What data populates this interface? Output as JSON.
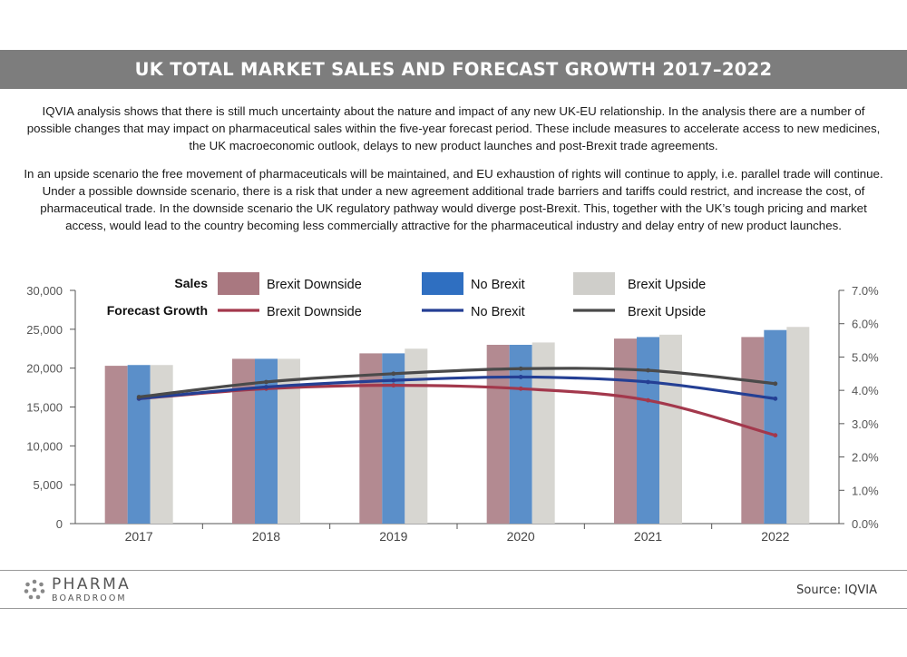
{
  "header": {
    "title": "UK TOTAL MARKET SALES AND FORECAST GROWTH 2017–2022"
  },
  "body": {
    "paragraph_1": "IQVIA analysis shows that there is still much uncertainty about the nature and impact of any new UK-EU relationship. In the analysis there are a number of possible changes that may impact on pharmaceutical sales within the five-year forecast period. These include measures to accelerate access to new medicines, the UK macroeconomic outlook, delays to new product launches and post-Brexit trade agreements.",
    "paragraph_2": "In an upside scenario the free movement of pharmaceuticals will be maintained, and EU exhaustion of rights will continue to apply, i.e. parallel trade will continue. Under a possible downside scenario, there is a risk that under a new agreement additional trade barriers and tariffs could restrict, and increase the cost, of pharmaceutical trade. In the downside scenario the UK regulatory pathway would diverge post-Brexit. This, together with the UK’s tough pricing and market access, would lead to the country becoming less commercially attractive for the pharmaceutical industry and delay entry of new product launches."
  },
  "chart_data": {
    "type": "bar",
    "combo": "bar+line",
    "categories": [
      "2017",
      "2018",
      "2019",
      "2020",
      "2021",
      "2022"
    ],
    "title": "",
    "xlabel": "",
    "ylabel": "",
    "y_left": {
      "lim": [
        0,
        30000
      ],
      "ticks": [
        0,
        5000,
        10000,
        15000,
        20000,
        25000,
        30000
      ],
      "tick_labels": [
        "0",
        "5,000",
        "10,000",
        "15,000",
        "20,000",
        "25,000",
        "30,000"
      ]
    },
    "y_right": {
      "lim": [
        0,
        7
      ],
      "ticks": [
        0,
        1,
        2,
        3,
        4,
        5,
        6,
        7
      ],
      "tick_labels": [
        "0.0%",
        "1.0%",
        "2.0%",
        "3.0%",
        "4.0%",
        "5.0%",
        "6.0%",
        "7.0%"
      ]
    },
    "grid": false,
    "legend": {
      "placement": "top",
      "sales_label": "Sales",
      "growth_label": "Forecast Growth"
    },
    "series": [
      {
        "name": "Brexit Downside",
        "kind": "bar",
        "axis": "left",
        "color": "#b38a91",
        "values": [
          20300,
          21200,
          21900,
          23000,
          23800,
          24000
        ]
      },
      {
        "name": "No Brexit",
        "kind": "bar",
        "axis": "left",
        "color": "#5b8fc9",
        "values": [
          20400,
          21200,
          21900,
          23000,
          24000,
          24900
        ]
      },
      {
        "name": "Brexit Upside",
        "kind": "bar",
        "axis": "left",
        "color": "#d7d6d1",
        "values": [
          20400,
          21200,
          22500,
          23300,
          24300,
          25300
        ]
      },
      {
        "name": "Brexit Downside",
        "kind": "line",
        "axis": "right",
        "color": "#a3384c",
        "values": [
          3.75,
          4.05,
          4.15,
          4.05,
          3.7,
          2.65
        ]
      },
      {
        "name": "No Brexit",
        "kind": "line",
        "axis": "right",
        "color": "#243f94",
        "values": [
          3.75,
          4.1,
          4.3,
          4.4,
          4.25,
          3.75
        ]
      },
      {
        "name": "Brexit Upside",
        "kind": "line",
        "axis": "right",
        "color": "#4a4a4a",
        "values": [
          3.8,
          4.25,
          4.5,
          4.65,
          4.6,
          4.2
        ]
      }
    ],
    "legend_swatches": {
      "bar_colors": [
        "#a97880",
        "#2f6fc1",
        "#cfceca"
      ]
    }
  },
  "footer": {
    "logo_main": "PHARMA",
    "logo_sub": "BOARDROOM",
    "source": "Source: IQVIA"
  }
}
